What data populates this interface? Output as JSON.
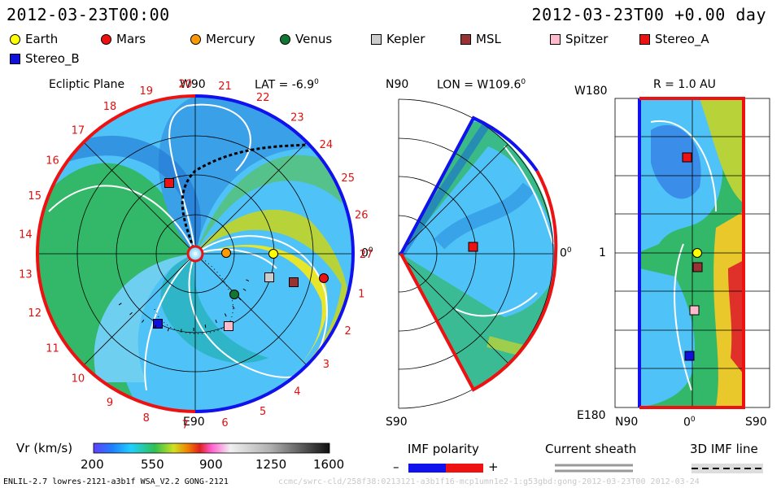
{
  "header": {
    "datetime_left": "2012-03-23T00:00",
    "datetime_right": "2012-03-23T00 +0.00 day"
  },
  "legend": [
    {
      "label": "Earth",
      "color": "#ffff00",
      "shape": "circle"
    },
    {
      "label": "Mars",
      "color": "#ee1111",
      "shape": "circle"
    },
    {
      "label": "Mercury",
      "color": "#ff9900",
      "shape": "circle"
    },
    {
      "label": "Venus",
      "color": "#117733",
      "shape": "circle"
    },
    {
      "label": "Kepler",
      "color": "#cccccc",
      "shape": "square"
    },
    {
      "label": "MSL",
      "color": "#993333",
      "shape": "square"
    },
    {
      "label": "Spitzer",
      "color": "#ffbbcc",
      "shape": "square"
    },
    {
      "label": "Stereo_A",
      "color": "#ee1111",
      "shape": "square"
    },
    {
      "label": "Stereo_B",
      "color": "#1111dd",
      "shape": "square"
    }
  ],
  "panels": {
    "ecliptic": {
      "title": "Ecliptic Plane",
      "lat": "LAT = -6.9",
      "lat_sup": "0",
      "top_label": "W90",
      "bottom_label": "E90",
      "right_label": "0",
      "right_sup": "0",
      "sector_numbers": [
        "1",
        "2",
        "3",
        "4",
        "5",
        "6",
        "7",
        "8",
        "9",
        "10",
        "11",
        "12",
        "13",
        "14",
        "15",
        "16",
        "17",
        "18",
        "19",
        "20",
        "21",
        "22",
        "23",
        "24",
        "25",
        "26",
        "27"
      ]
    },
    "meridional": {
      "lon": "LON = W109.6",
      "lon_sup": "0",
      "top_label": "N90",
      "bottom_label": "S90",
      "right_label": "0",
      "right_sup": "0"
    },
    "radial": {
      "title": "R = 1.0 AU",
      "top_left": "W180",
      "mid_left": "1",
      "bottom_left": "E180",
      "bottom_n": "N90",
      "bottom_zero": "0",
      "bottom_zero_sup": "0",
      "bottom_s": "S90"
    }
  },
  "colorbar": {
    "label": "Vr (km/s)",
    "ticks": [
      "200",
      "550",
      "900",
      "1250",
      "1600"
    ]
  },
  "imf_polarity": {
    "label": "IMF polarity",
    "minus": "–",
    "plus": "+"
  },
  "current_sheath": {
    "label": "Current sheath"
  },
  "imf_line": {
    "label": "3D IMF line"
  },
  "footer": {
    "left": "ENLIL-2.7 lowres-2121-a3b1f WSA_V2.2 GONG-2121",
    "right": "ccmc/swrc-cld/258f38:0213121-a3b1f16-mcp1umn1e2-1:g53gbd:gong-2012-03-23T00    2012-03-24"
  }
}
